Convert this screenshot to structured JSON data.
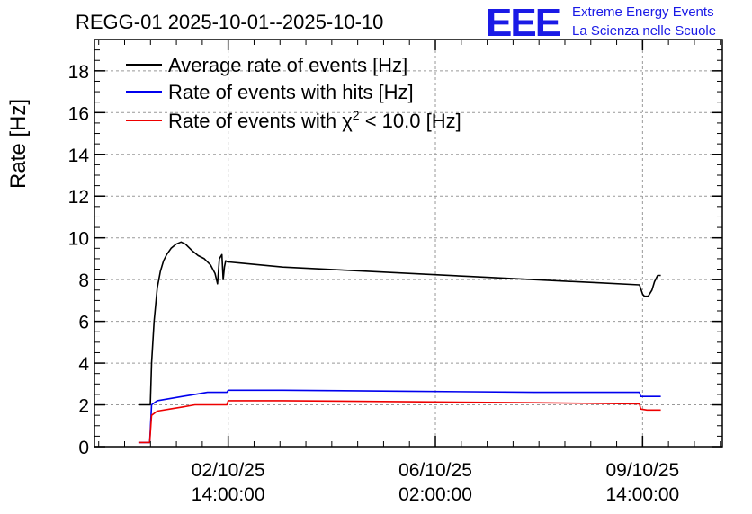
{
  "chart_data": {
    "type": "line",
    "title": "REGG-01 2025-10-01--2025-10-10",
    "brand": {
      "logo": "EEE",
      "line1": "Extreme Energy Events",
      "line2": "La Scienza nelle Scuole"
    },
    "ylabel": "Rate [Hz]",
    "xlabel": "",
    "ylim": [
      0,
      19.5
    ],
    "xlim": [
      0,
      1000
    ],
    "grid": true,
    "legend_position": "top-left",
    "yticks": [
      0,
      2,
      4,
      6,
      8,
      10,
      12,
      14,
      16,
      18
    ],
    "ytick_labels": [
      "0",
      "2",
      "4",
      "6",
      "8",
      "10",
      "12",
      "14",
      "16",
      "18"
    ],
    "xticks": [
      {
        "pos": 213,
        "date": "02/10/25",
        "time": "14:00:00"
      },
      {
        "pos": 543,
        "date": "06/10/25",
        "time": "02:00:00"
      },
      {
        "pos": 873,
        "date": "09/10/25",
        "time": "14:00:00"
      }
    ],
    "series": [
      {
        "name": "Average rate of events [Hz]",
        "color": "#000000",
        "x": [
          70,
          89,
          91,
          95,
          100,
          105,
          110,
          115,
          122,
          130,
          138,
          145,
          155,
          165,
          175,
          185,
          192,
          196,
          199,
          203,
          205,
          207,
          209,
          212,
          230,
          300,
          400,
          500,
          600,
          700,
          800,
          868,
          873,
          876,
          882,
          888,
          892,
          897,
          902
        ],
        "values": [
          2.0,
          2.0,
          4.0,
          6.0,
          7.6,
          8.4,
          8.9,
          9.2,
          9.5,
          9.7,
          9.8,
          9.7,
          9.4,
          9.15,
          9.0,
          8.7,
          8.3,
          7.8,
          9.0,
          9.2,
          8.0,
          8.6,
          8.9,
          8.85,
          8.8,
          8.6,
          8.45,
          8.3,
          8.15,
          8.0,
          7.85,
          7.75,
          7.3,
          7.2,
          7.2,
          7.5,
          7.9,
          8.2,
          8.2
        ]
      },
      {
        "name": "Rate of events with hits [Hz]",
        "color": "#0000ee",
        "x": [
          70,
          88,
          91,
          100,
          120,
          140,
          160,
          180,
          200,
          211,
          213,
          300,
          500,
          700,
          868,
          870,
          880,
          890,
          902
        ],
        "values": [
          0.2,
          0.2,
          2.0,
          2.2,
          2.3,
          2.4,
          2.5,
          2.6,
          2.6,
          2.6,
          2.7,
          2.7,
          2.65,
          2.6,
          2.6,
          2.4,
          2.4,
          2.4,
          2.4
        ]
      },
      {
        "name": "Rate of events with χ² < 10.0 [Hz]",
        "color": "#ee0000",
        "x": [
          70,
          88,
          91,
          100,
          120,
          140,
          160,
          180,
          200,
          211,
          213,
          300,
          500,
          700,
          868,
          870,
          880,
          890,
          902
        ],
        "values": [
          0.2,
          0.2,
          1.5,
          1.7,
          1.8,
          1.9,
          2.0,
          2.0,
          2.0,
          2.0,
          2.2,
          2.2,
          2.15,
          2.1,
          2.05,
          1.8,
          1.75,
          1.75,
          1.75
        ]
      }
    ],
    "legend": [
      {
        "label": "Average rate of events [Hz]",
        "color": "#000000"
      },
      {
        "label": "Rate of events with hits [Hz]",
        "color": "#0000ee"
      },
      {
        "label_pre": "Rate of events with ",
        "label_chi": "χ",
        "label_sup": "2",
        "label_post": " < 10.0 [Hz]",
        "color": "#ee0000"
      }
    ]
  }
}
